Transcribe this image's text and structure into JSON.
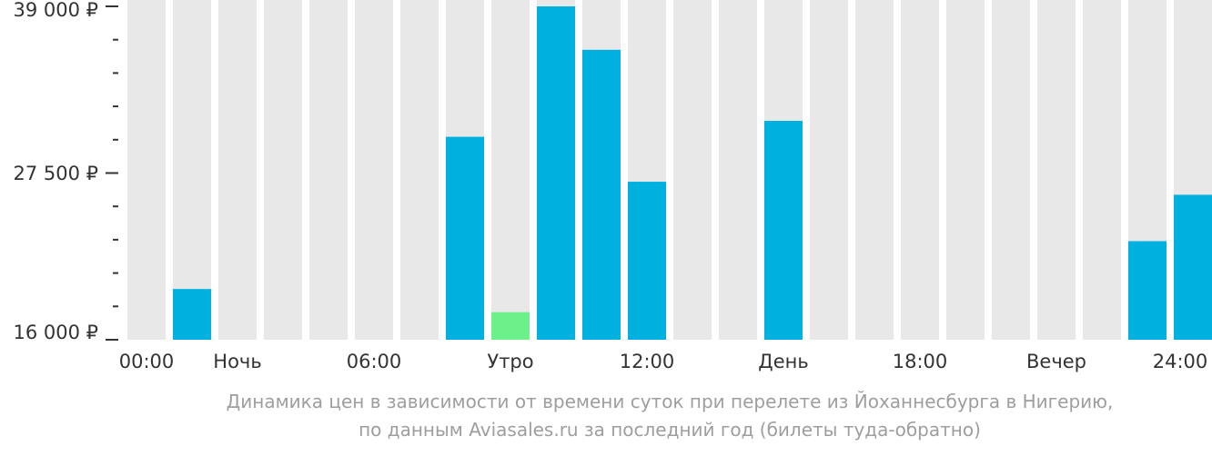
{
  "chart_data": {
    "type": "bar",
    "y_ticks": [
      "39 000 ₽",
      "27 500 ₽",
      "16 000 ₽"
    ],
    "ylim": [
      16000,
      39000
    ],
    "x_labels": [
      "00:00",
      "Ночь",
      "06:00",
      "Утро",
      "12:00",
      "День",
      "18:00",
      "Вечер",
      "24:00"
    ],
    "values": [
      null,
      19500,
      null,
      null,
      null,
      null,
      null,
      30000,
      17900,
      39000,
      36000,
      26900,
      null,
      null,
      31100,
      null,
      null,
      null,
      null,
      null,
      null,
      null,
      22800,
      26000
    ],
    "highlight_index": 8,
    "colors": {
      "bar": "#00b0de",
      "highlight": "#6cf08a",
      "background_bar": "#e8e8e8",
      "axis_text": "#333333"
    },
    "caption": [
      "Динамика цен в зависимости от времени суток при перелете из Йоханнесбурга в Нигерию,",
      "по данным Aviasales.ru за последний год (билеты туда-обратно)"
    ]
  }
}
